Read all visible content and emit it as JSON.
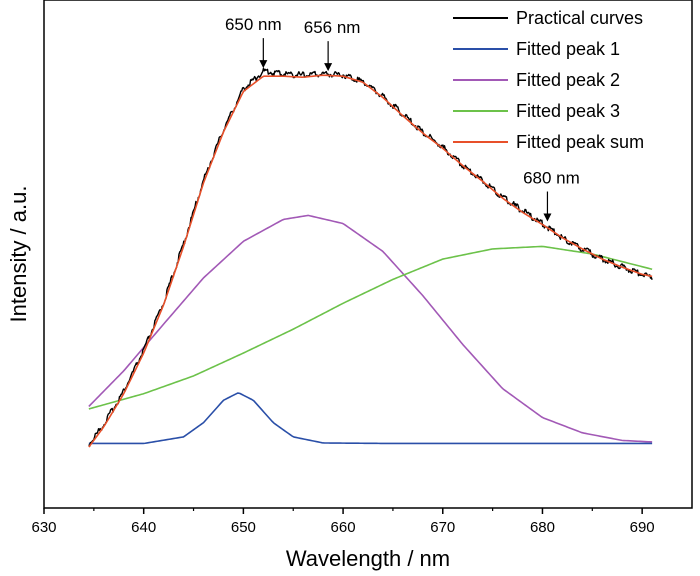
{
  "chart_data": {
    "type": "line",
    "title": "",
    "xlabel": "Wavelength / nm",
    "ylabel": "Intensity / a.u.",
    "xlim": [
      630,
      695
    ],
    "ylim": [
      0,
      1
    ],
    "x_ticks": [
      630,
      640,
      650,
      660,
      670,
      680,
      690
    ],
    "y_tick_labels": false,
    "grid": false,
    "legend_position": "top-right",
    "series": [
      {
        "name": "Practical curves",
        "color": "#000000",
        "x": [
          634.5,
          636,
          638,
          640,
          642,
          644,
          646,
          648,
          650,
          652,
          654,
          656,
          658,
          660,
          662,
          664,
          666,
          668,
          670,
          672,
          674,
          676,
          678,
          680,
          682,
          684,
          686,
          688,
          690,
          691
        ],
        "y": [
          0.125,
          0.165,
          0.23,
          0.31,
          0.405,
          0.52,
          0.645,
          0.745,
          0.825,
          0.86,
          0.855,
          0.852,
          0.855,
          0.853,
          0.84,
          0.81,
          0.775,
          0.74,
          0.71,
          0.675,
          0.645,
          0.612,
          0.585,
          0.56,
          0.532,
          0.51,
          0.49,
          0.475,
          0.46,
          0.455
        ]
      },
      {
        "name": "Fitted peak 1",
        "color": "#2a4fa8",
        "x": [
          634.5,
          640,
          644,
          646,
          648,
          649.5,
          651,
          653,
          655,
          658,
          665,
          691
        ],
        "y": [
          0.127,
          0.127,
          0.14,
          0.168,
          0.212,
          0.227,
          0.212,
          0.168,
          0.14,
          0.128,
          0.127,
          0.127
        ]
      },
      {
        "name": "Fitted peak 2",
        "color": "#a259b6",
        "x": [
          634.5,
          638,
          642,
          646,
          650,
          654,
          656.5,
          660,
          664,
          668,
          672,
          676,
          680,
          684,
          688,
          691
        ],
        "y": [
          0.2,
          0.27,
          0.362,
          0.453,
          0.525,
          0.568,
          0.576,
          0.56,
          0.505,
          0.418,
          0.322,
          0.235,
          0.178,
          0.148,
          0.133,
          0.13
        ]
      },
      {
        "name": "Fitted peak 3",
        "color": "#6cc24a",
        "x": [
          634.5,
          640,
          645,
          650,
          655,
          660,
          665,
          670,
          675,
          680,
          685,
          691
        ],
        "y": [
          0.195,
          0.225,
          0.26,
          0.305,
          0.352,
          0.403,
          0.45,
          0.49,
          0.51,
          0.515,
          0.5,
          0.47
        ]
      },
      {
        "name": "Fitted peak sum",
        "color": "#e8502a",
        "x": [
          634.5,
          636,
          638,
          640,
          642,
          644,
          646,
          648,
          650,
          652,
          654,
          656,
          658,
          660,
          662,
          664,
          666,
          668,
          670,
          672,
          674,
          676,
          678,
          680,
          682,
          684,
          686,
          688,
          690,
          691
        ],
        "y": [
          0.12,
          0.16,
          0.225,
          0.305,
          0.4,
          0.515,
          0.64,
          0.74,
          0.82,
          0.85,
          0.85,
          0.848,
          0.852,
          0.85,
          0.838,
          0.808,
          0.772,
          0.738,
          0.708,
          0.674,
          0.643,
          0.61,
          0.582,
          0.558,
          0.532,
          0.51,
          0.49,
          0.474,
          0.46,
          0.456
        ]
      }
    ],
    "annotations": [
      {
        "text": "650 nm",
        "x": 652,
        "y": 0.862
      },
      {
        "text": "656 nm",
        "x": 658.5,
        "y": 0.856
      },
      {
        "text": "680 nm",
        "x": 680.5,
        "y": 0.56
      }
    ]
  }
}
